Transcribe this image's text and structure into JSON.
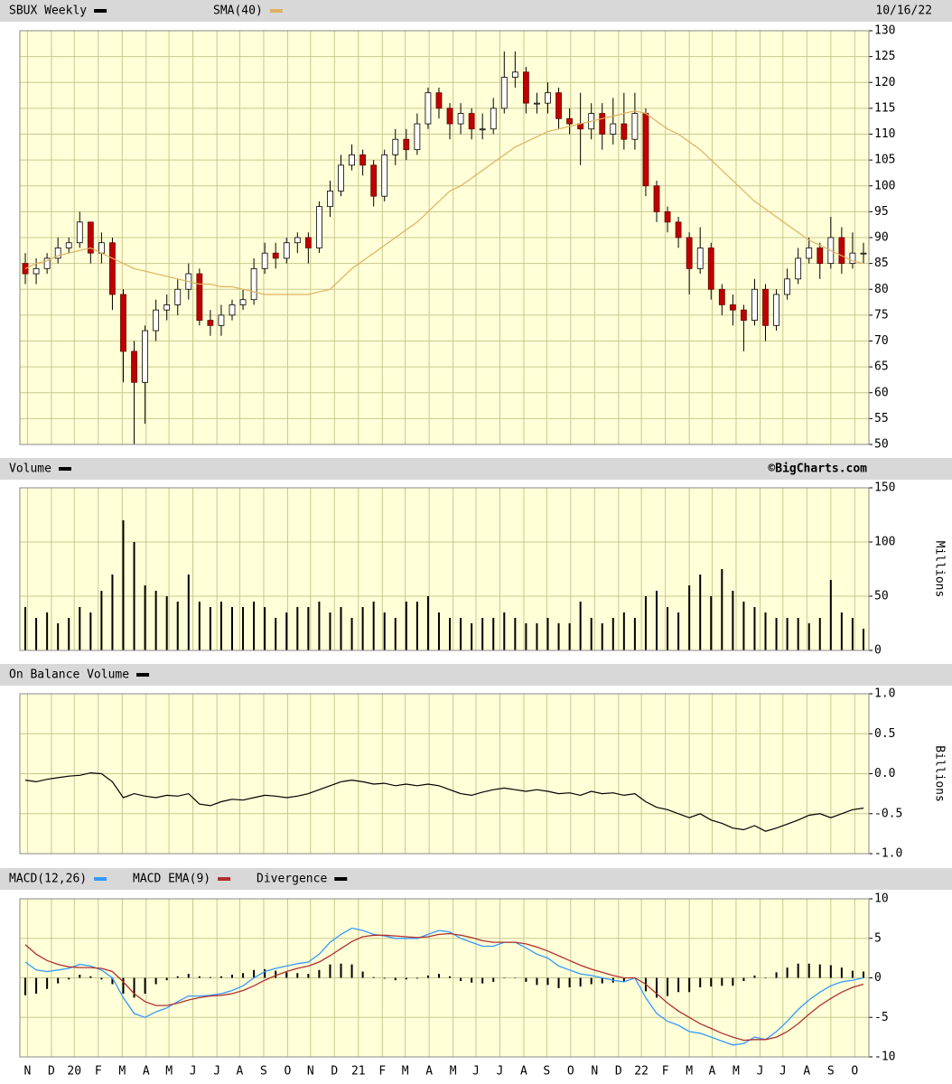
{
  "chart_data": [
    {
      "type": "candlestick",
      "title": "SBUX Weekly",
      "color": "#000000",
      "date": "10/16/22",
      "up_color": "#ffffff",
      "down_color": "#c00000",
      "open": [
        85,
        83,
        84,
        86,
        88,
        89,
        93,
        87,
        89,
        79,
        68,
        62,
        72,
        76,
        77,
        80,
        83,
        74,
        73,
        75,
        77,
        78,
        84,
        87,
        86,
        89,
        90,
        88,
        96,
        99,
        104,
        106,
        104,
        98,
        106,
        109,
        107,
        112,
        118,
        115,
        112,
        114,
        111,
        111,
        115,
        121,
        122,
        116,
        116,
        118,
        113,
        112,
        111,
        114,
        110,
        112,
        109,
        114,
        100,
        95,
        93,
        90,
        84,
        88,
        80,
        77,
        76,
        74,
        80,
        73,
        79,
        82,
        86,
        88,
        85,
        90,
        85,
        87
      ],
      "high": [
        87,
        86,
        87,
        90,
        90,
        95,
        93,
        91,
        90,
        80,
        70,
        73,
        78,
        79,
        82,
        85,
        84,
        76,
        77,
        78,
        80,
        86,
        89,
        89,
        90,
        91,
        91,
        97,
        101,
        106,
        108,
        107,
        105,
        107,
        111,
        111,
        114,
        119,
        119,
        116,
        116,
        115,
        114,
        117,
        126,
        126,
        123,
        118,
        120,
        119,
        115,
        118,
        116,
        116,
        117,
        118,
        118,
        115,
        101,
        96,
        94,
        91,
        92,
        89,
        81,
        79,
        77,
        82,
        81,
        80,
        84,
        88,
        90,
        89,
        94,
        92,
        91,
        89
      ],
      "low": [
        81,
        81,
        83,
        85,
        87,
        88,
        85,
        85,
        76,
        62,
        50,
        54,
        70,
        74,
        75,
        78,
        73,
        71,
        71,
        74,
        76,
        77,
        83,
        84,
        85,
        87,
        85,
        87,
        94,
        98,
        103,
        102,
        96,
        97,
        104,
        105,
        106,
        111,
        113,
        109,
        110,
        109,
        109,
        110,
        114,
        119,
        114,
        114,
        114,
        111,
        110,
        104,
        109,
        107,
        108,
        107,
        107,
        98,
        93,
        91,
        88,
        79,
        83,
        78,
        75,
        73,
        68,
        73,
        70,
        72,
        78,
        81,
        85,
        82,
        84,
        83,
        84,
        85
      ],
      "close": [
        83,
        84,
        86,
        88,
        89,
        93,
        87,
        89,
        79,
        68,
        62,
        72,
        76,
        77,
        80,
        83,
        74,
        73,
        75,
        77,
        78,
        84,
        87,
        86,
        89,
        90,
        88,
        96,
        99,
        104,
        106,
        104,
        98,
        106,
        109,
        107,
        112,
        118,
        115,
        112,
        114,
        111,
        111,
        115,
        121,
        122,
        116,
        116,
        118,
        113,
        112,
        111,
        114,
        110,
        112,
        109,
        114,
        100,
        95,
        93,
        90,
        84,
        88,
        80,
        77,
        76,
        74,
        80,
        73,
        79,
        82,
        86,
        88,
        85,
        90,
        85,
        87,
        87
      ],
      "overlays": [
        {
          "name": "SMA(40)",
          "color": "#e0b060",
          "values": [
            84,
            85,
            85.5,
            86.5,
            87,
            87.5,
            88,
            87,
            86,
            85,
            84,
            83.5,
            83,
            82.5,
            82,
            81.5,
            81,
            81,
            80.5,
            80.5,
            80,
            79.5,
            79,
            79,
            79,
            79,
            79,
            79.5,
            80,
            82,
            84,
            85.5,
            87,
            88.5,
            90,
            91.5,
            93,
            95,
            97,
            99,
            100,
            101.5,
            103,
            104.5,
            106,
            107.5,
            108.5,
            109.5,
            110.5,
            111,
            111.5,
            112,
            112.5,
            113,
            113.5,
            114,
            114.5,
            114,
            112.5,
            111,
            110,
            108.5,
            107,
            105,
            103,
            101,
            99,
            97,
            95.5,
            94,
            92.5,
            91,
            89.5,
            88.5,
            87.5,
            86.5,
            85.5,
            85
          ]
        }
      ],
      "ylim": [
        50,
        130
      ],
      "yticks": [
        50,
        55,
        60,
        65,
        70,
        75,
        80,
        85,
        90,
        95,
        100,
        105,
        110,
        115,
        120,
        125,
        130
      ],
      "grid": true
    },
    {
      "type": "bar",
      "title": "Volume",
      "color": "#000000",
      "credit": "©BigCharts.com",
      "y_label": "Millions",
      "values": [
        40,
        30,
        35,
        25,
        30,
        40,
        35,
        55,
        70,
        120,
        100,
        60,
        55,
        50,
        45,
        70,
        45,
        40,
        45,
        40,
        40,
        45,
        40,
        30,
        35,
        40,
        40,
        45,
        35,
        40,
        30,
        40,
        45,
        35,
        30,
        45,
        45,
        50,
        35,
        30,
        30,
        25,
        30,
        30,
        35,
        30,
        25,
        25,
        30,
        25,
        25,
        45,
        30,
        25,
        30,
        35,
        30,
        50,
        55,
        40,
        35,
        60,
        70,
        50,
        75,
        55,
        45,
        40,
        35,
        30,
        30,
        30,
        25,
        30,
        65,
        35,
        30,
        20
      ],
      "ylim": [
        0,
        150
      ],
      "yticks": [
        0,
        50,
        100,
        150
      ],
      "grid": true
    },
    {
      "type": "line",
      "title": "On Balance Volume",
      "color": "#000000",
      "y_label": "Billions",
      "values": [
        -0.08,
        -0.1,
        -0.07,
        -0.05,
        -0.03,
        -0.02,
        0.01,
        0,
        -0.1,
        -0.3,
        -0.25,
        -0.28,
        -0.3,
        -0.27,
        -0.28,
        -0.25,
        -0.38,
        -0.4,
        -0.35,
        -0.32,
        -0.33,
        -0.3,
        -0.27,
        -0.28,
        -0.3,
        -0.28,
        -0.25,
        -0.2,
        -0.15,
        -0.1,
        -0.08,
        -0.1,
        -0.13,
        -0.12,
        -0.15,
        -0.13,
        -0.15,
        -0.13,
        -0.15,
        -0.2,
        -0.25,
        -0.27,
        -0.23,
        -0.2,
        -0.18,
        -0.2,
        -0.22,
        -0.2,
        -0.22,
        -0.25,
        -0.24,
        -0.27,
        -0.22,
        -0.25,
        -0.24,
        -0.27,
        -0.25,
        -0.35,
        -0.42,
        -0.45,
        -0.5,
        -0.55,
        -0.5,
        -0.58,
        -0.62,
        -0.68,
        -0.7,
        -0.65,
        -0.72,
        -0.68,
        -0.63,
        -0.58,
        -0.52,
        -0.5,
        -0.55,
        -0.5,
        -0.45,
        -0.43
      ],
      "ylim": [
        -1,
        1
      ],
      "yticks": [
        {
          "value": 1,
          "label": "1.0"
        },
        0.5,
        {
          "value": 0,
          "label": "0.0"
        },
        -0.5,
        {
          "value": -1,
          "label": "-1.0"
        }
      ],
      "grid": true
    },
    {
      "type": "line",
      "series": [
        {
          "name": "MACD(12,26)",
          "color": "#3399ff",
          "type": "line",
          "values": [
            2,
            1,
            0.8,
            1,
            1.2,
            1.7,
            1.5,
            1,
            0,
            -2.5,
            -4.5,
            -5,
            -4.3,
            -3.8,
            -3,
            -2.3,
            -2.3,
            -2.2,
            -2,
            -1.6,
            -1,
            0,
            0.8,
            1.2,
            1.5,
            1.8,
            2,
            3,
            4.5,
            5.5,
            6.3,
            6,
            5.5,
            5.3,
            5,
            5,
            5,
            5.5,
            6,
            5.8,
            5,
            4.5,
            4,
            4,
            4.5,
            4.5,
            3.8,
            3,
            2.5,
            1.5,
            1,
            0.5,
            0.3,
            0,
            -0.3,
            -0.5,
            0,
            -2.5,
            -4.5,
            -5.5,
            -6,
            -6.8,
            -7,
            -7.5,
            -8,
            -8.5,
            -8.3,
            -7.5,
            -7.8,
            -6.8,
            -5.5,
            -4,
            -2.8,
            -1.8,
            -1,
            -0.5,
            -0.3,
            0
          ]
        },
        {
          "name": "MACD EMA(9)",
          "color": "#b03030",
          "type": "line",
          "values": [
            4.2,
            3,
            2.2,
            1.7,
            1.4,
            1.3,
            1.3,
            1.2,
            0.8,
            -0.5,
            -2,
            -3,
            -3.5,
            -3.5,
            -3.2,
            -2.8,
            -2.5,
            -2.3,
            -2.2,
            -2,
            -1.6,
            -1,
            -0.3,
            0.3,
            0.8,
            1.2,
            1.5,
            2,
            2.8,
            3.7,
            4.6,
            5.2,
            5.4,
            5.4,
            5.3,
            5.2,
            5.1,
            5.2,
            5.5,
            5.6,
            5.4,
            5.1,
            4.7,
            4.5,
            4.5,
            4.5,
            4.3,
            3.9,
            3.4,
            2.8,
            2.2,
            1.6,
            1.1,
            0.7,
            0.3,
            0,
            0,
            -0.8,
            -2,
            -3.2,
            -4.2,
            -5,
            -5.8,
            -6.4,
            -7,
            -7.5,
            -7.9,
            -7.8,
            -7.8,
            -7.5,
            -6.8,
            -5.8,
            -4.6,
            -3.5,
            -2.6,
            -1.8,
            -1.2,
            -0.8
          ]
        },
        {
          "name": "Divergence",
          "color": "#000000",
          "type": "bar",
          "values": [
            -2.2,
            -2,
            -1.4,
            -0.7,
            -0.2,
            0.4,
            0.2,
            -0.2,
            -0.8,
            -2,
            -2.5,
            -2,
            -0.8,
            -0.3,
            0.2,
            0.5,
            0.2,
            0.1,
            0.2,
            0.4,
            0.6,
            1,
            1.1,
            0.9,
            0.7,
            0.6,
            0.5,
            1,
            1.7,
            1.8,
            1.7,
            0.8,
            0.1,
            -0.1,
            -0.3,
            -0.2,
            -0.1,
            0.3,
            0.5,
            0.2,
            -0.4,
            -0.6,
            -0.7,
            -0.5,
            0,
            0,
            -0.5,
            -0.9,
            -0.9,
            -1.3,
            -1.2,
            -1.1,
            -0.8,
            -0.7,
            -0.6,
            -0.5,
            0,
            -1.7,
            -2.5,
            -2.3,
            -1.8,
            -1.8,
            -1.2,
            -1.1,
            -1,
            -1,
            -0.4,
            0.3,
            0,
            0.7,
            1.3,
            1.8,
            1.8,
            1.7,
            1.6,
            1.3,
            0.9,
            0.8
          ]
        }
      ],
      "ylim": [
        -10,
        10
      ],
      "yticks": [
        -10,
        -5,
        0,
        5,
        10
      ],
      "grid": true,
      "xlim": [
        -0.5,
        77.5
      ],
      "xticks": [
        {
          "value": 0.2,
          "label": "N"
        },
        {
          "value": 2.4,
          "label": "D"
        },
        {
          "value": 4.5,
          "label": "20"
        },
        {
          "value": 6.7,
          "label": "F"
        },
        {
          "value": 8.9,
          "label": "M"
        },
        {
          "value": 11.1,
          "label": "A"
        },
        {
          "value": 13.2,
          "label": "M"
        },
        {
          "value": 15.4,
          "label": "J"
        },
        {
          "value": 17.6,
          "label": "J"
        },
        {
          "value": 19.7,
          "label": "A"
        },
        {
          "value": 21.9,
          "label": "S"
        },
        {
          "value": 24.1,
          "label": "O"
        },
        {
          "value": 26.2,
          "label": "N"
        },
        {
          "value": 28.4,
          "label": "D"
        },
        {
          "value": 30.6,
          "label": "21"
        },
        {
          "value": 32.8,
          "label": "F"
        },
        {
          "value": 34.9,
          "label": "M"
        },
        {
          "value": 37.1,
          "label": "A"
        },
        {
          "value": 39.3,
          "label": "M"
        },
        {
          "value": 41.4,
          "label": "J"
        },
        {
          "value": 43.6,
          "label": "J"
        },
        {
          "value": 45.8,
          "label": "A"
        },
        {
          "value": 47.9,
          "label": "S"
        },
        {
          "value": 50.1,
          "label": "O"
        },
        {
          "value": 52.3,
          "label": "N"
        },
        {
          "value": 54.5,
          "label": "D"
        },
        {
          "value": 56.6,
          "label": "22"
        },
        {
          "value": 58.8,
          "label": "F"
        },
        {
          "value": 61.0,
          "label": "M"
        },
        {
          "value": 63.1,
          "label": "A"
        },
        {
          "value": 65.3,
          "label": "M"
        },
        {
          "value": 67.5,
          "label": "J"
        },
        {
          "value": 69.6,
          "label": "J"
        },
        {
          "value": 71.8,
          "label": "A"
        },
        {
          "value": 74.0,
          "label": "S"
        },
        {
          "value": 76.2,
          "label": "O"
        }
      ]
    }
  ]
}
